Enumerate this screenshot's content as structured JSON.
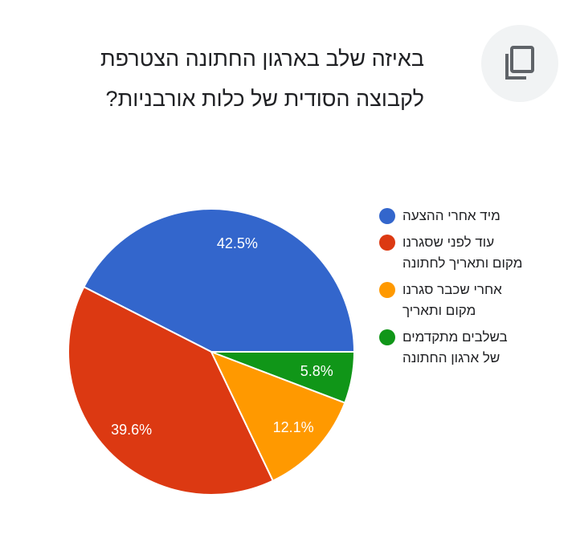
{
  "question": {
    "title": "באיזה שלב בארגון החתונה הצטרפת לקבוצה הסודית של כלות אורבניות?"
  },
  "toolbar": {
    "copy_icon": "copy-icon"
  },
  "chart_data": {
    "type": "pie",
    "title": "",
    "start_angle_deg": 90,
    "direction": "counterclockwise",
    "legend_position": "right",
    "series": [
      {
        "name": "מיד אחרי ההצעה",
        "value": 42.5,
        "label": "42.5%",
        "color": "#3366cc"
      },
      {
        "name": "עוד לפני שסגרנו מקום ותאריך לחתונה",
        "value": 39.6,
        "label": "39.6%",
        "color": "#dc3912"
      },
      {
        "name": "אחרי שכבר סגרנו מקום ותאריך",
        "value": 12.1,
        "label": "12.1%",
        "color": "#ff9900"
      },
      {
        "name": "בשלבים מתקדמים של ארגון החתונה",
        "value": 5.8,
        "label": "5.8%",
        "color": "#109618"
      }
    ]
  }
}
